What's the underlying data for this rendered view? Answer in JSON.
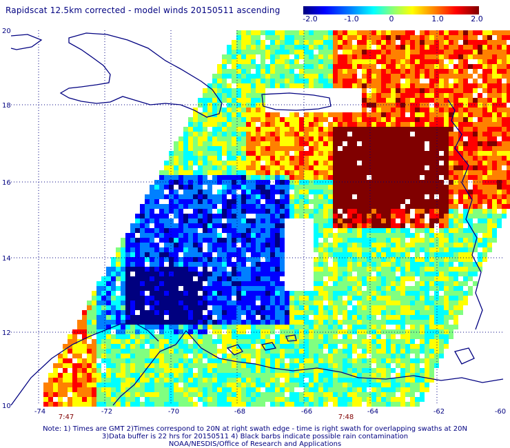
{
  "title": "Rapidscat 12.5km corrected - model winds 20150511 ascending",
  "colorbar": {
    "ticks": [
      "-2.0",
      "-1.0",
      "0",
      "1.0",
      "2.0"
    ],
    "colors": [
      "#00007f",
      "#0000ff",
      "#0080ff",
      "#00ffff",
      "#80ff80",
      "#ffff00",
      "#ff8000",
      "#ff0000",
      "#800000"
    ]
  },
  "axes": {
    "lat_labels": [
      "20",
      "18",
      "16",
      "14",
      "12",
      "10"
    ],
    "lon_labels": [
      "-74",
      "-72",
      "-70",
      "-68",
      "-66",
      "-64",
      "-62",
      "-60"
    ]
  },
  "time_labels": [
    "7:47",
    "7:48"
  ],
  "notes": [
    "Note: 1) Times are GMT 2)Times correspond to 20N at right swath edge - time is right swath for overlapping swaths at 20N",
    "3)Data buffer is 22 hrs for 20150511 4) Black barbs indicate possible rain contamination",
    "NOAA/NESDIS/Office of Research and Applications"
  ]
}
